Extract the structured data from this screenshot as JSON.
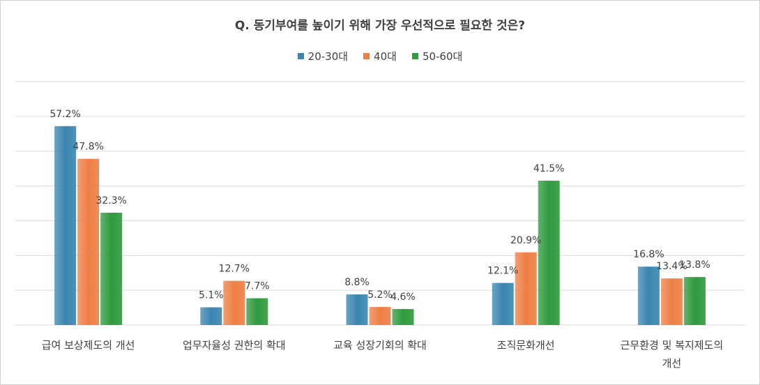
{
  "chart_data": {
    "type": "bar",
    "title": "Q. 동기부여를 높이기 위해 가장 우선적으로 필요한 것은?",
    "categories": [
      [
        "급여 보상제도의 개선"
      ],
      [
        "업무자율성 권한의 확대"
      ],
      [
        "교육 성장기회의 확대"
      ],
      [
        "조직문화개선"
      ],
      [
        "근무환경 및 복지제도의",
        "개선"
      ]
    ],
    "series": [
      {
        "name": "20-30대",
        "values": [
          57.2,
          5.1,
          8.8,
          12.1,
          16.8
        ],
        "labels": [
          "57.2%",
          "5.1%",
          "8.8%",
          "12.1%",
          "16.8%"
        ],
        "color": "#3a86b0"
      },
      {
        "name": "40대",
        "values": [
          47.8,
          12.7,
          5.2,
          20.9,
          13.4
        ],
        "labels": [
          "47.8%",
          "12.7%",
          "5.2%",
          "20.9%",
          "13.4%"
        ],
        "color": "#ee7f45"
      },
      {
        "name": "50-60대",
        "values": [
          32.3,
          7.7,
          4.6,
          41.5,
          13.8
        ],
        "labels": [
          "32.3%",
          "7.7%",
          "4.6%",
          "41.5%",
          "13.8%"
        ],
        "color": "#2f9a3e"
      }
    ],
    "ylim": [
      0,
      70
    ],
    "grid": true,
    "legend_position": "top"
  }
}
